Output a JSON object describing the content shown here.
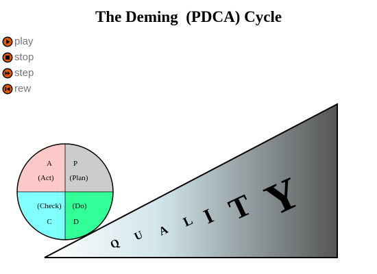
{
  "title": "The Deming  (PDCA) Cycle",
  "controls": {
    "play": {
      "label": "play",
      "icon": "play-icon"
    },
    "stop": {
      "label": "stop",
      "icon": "stop-icon"
    },
    "step": {
      "label": "step",
      "icon": "step-icon"
    },
    "rew": {
      "label": "rew",
      "icon": "rewind-icon"
    }
  },
  "wheel": {
    "act": {
      "letter": "A",
      "word": "(Act)",
      "color": "#ffc8c8"
    },
    "plan": {
      "letter": "P",
      "word": "(Plan)",
      "color": "#cccccc"
    },
    "check": {
      "letter": "C",
      "word": "(Check)",
      "color": "#80ffff"
    },
    "do": {
      "letter": "D",
      "word": "(Do)",
      "color": "#33ff99"
    }
  },
  "ramp": {
    "letters": [
      "Q",
      "U",
      "A",
      "L",
      "I",
      "T",
      "Y"
    ],
    "gradient_start": "#ffffff",
    "gradient_end": "#555555"
  },
  "colors": {
    "control_icon": "#e85a00",
    "control_text": "#777777"
  }
}
